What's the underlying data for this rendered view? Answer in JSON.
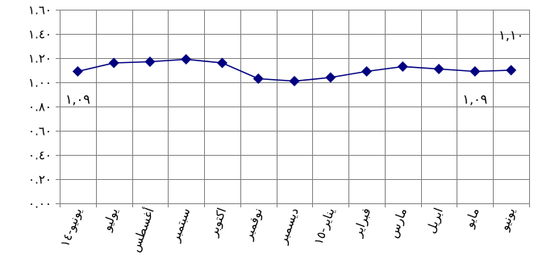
{
  "chart_data": {
    "type": "line",
    "title": "",
    "xlabel": "",
    "ylabel": "",
    "ylim": [
      0,
      1.6
    ],
    "yticks": [
      0,
      0.2,
      0.4,
      0.6,
      0.8,
      1.0,
      1.2,
      1.4,
      1.6
    ],
    "ytick_labels": [
      "٠.٠٠",
      "٠.٢٠",
      "٠.٤٠",
      "٠.٦٠",
      "٠.٨٠",
      "١.٠٠",
      "١.٢٠",
      "١.٤٠",
      "١.٦٠"
    ],
    "grid": true,
    "legend": "none",
    "categories": [
      "يونيو-١٤",
      "يوليو",
      "أغسطس",
      "سبتمبر",
      "اكتوبر",
      "نوفمبر",
      "ديسمبر",
      "يناير-١٥",
      "فبراير",
      "مارس",
      "ابريل",
      "مايو",
      "يونيو"
    ],
    "series": [
      {
        "color": "#000080",
        "marker": "diamond",
        "values": [
          1.09,
          1.16,
          1.17,
          1.19,
          1.16,
          1.03,
          1.01,
          1.04,
          1.09,
          1.13,
          1.11,
          1.09,
          1.1
        ]
      }
    ],
    "data_labels": [
      {
        "index": 0,
        "text": "١,٠٩",
        "position": "below"
      },
      {
        "index": 11,
        "text": "١,٠٩",
        "position": "below"
      },
      {
        "index": 12,
        "text": "١,١٠",
        "position": "above"
      }
    ]
  }
}
